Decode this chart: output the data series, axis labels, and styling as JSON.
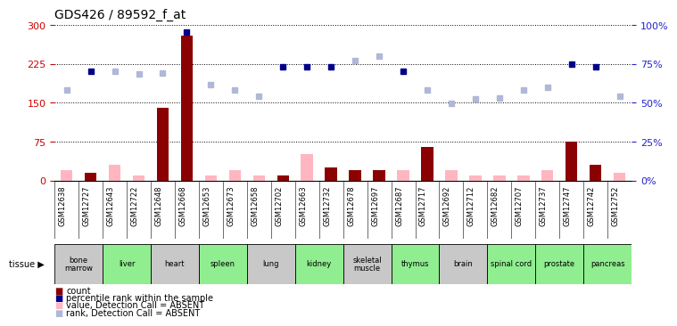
{
  "title": "GDS426 / 89592_f_at",
  "samples": [
    "GSM12638",
    "GSM12727",
    "GSM12643",
    "GSM12722",
    "GSM12648",
    "GSM12668",
    "GSM12653",
    "GSM12673",
    "GSM12658",
    "GSM12702",
    "GSM12663",
    "GSM12732",
    "GSM12678",
    "GSM12697",
    "GSM12687",
    "GSM12717",
    "GSM12692",
    "GSM12712",
    "GSM12682",
    "GSM12707",
    "GSM12737",
    "GSM12747",
    "GSM12742",
    "GSM12752"
  ],
  "tissues": [
    {
      "name": "bone\nmarrow",
      "start": 0,
      "end": 2,
      "color": "#c8c8c8"
    },
    {
      "name": "liver",
      "start": 2,
      "end": 4,
      "color": "#90ee90"
    },
    {
      "name": "heart",
      "start": 4,
      "end": 6,
      "color": "#c8c8c8"
    },
    {
      "name": "spleen",
      "start": 6,
      "end": 8,
      "color": "#90ee90"
    },
    {
      "name": "lung",
      "start": 8,
      "end": 10,
      "color": "#c8c8c8"
    },
    {
      "name": "kidney",
      "start": 10,
      "end": 12,
      "color": "#90ee90"
    },
    {
      "name": "skeletal\nmuscle",
      "start": 12,
      "end": 14,
      "color": "#c8c8c8"
    },
    {
      "name": "thymus",
      "start": 14,
      "end": 16,
      "color": "#90ee90"
    },
    {
      "name": "brain",
      "start": 16,
      "end": 18,
      "color": "#c8c8c8"
    },
    {
      "name": "spinal cord",
      "start": 18,
      "end": 20,
      "color": "#90ee90"
    },
    {
      "name": "prostate",
      "start": 20,
      "end": 22,
      "color": "#90ee90"
    },
    {
      "name": "pancreas",
      "start": 22,
      "end": 24,
      "color": "#90ee90"
    }
  ],
  "count_present": [
    0,
    15,
    0,
    0,
    140,
    280,
    0,
    0,
    0,
    10,
    0,
    25,
    20,
    20,
    0,
    65,
    0,
    0,
    0,
    0,
    0,
    75,
    30,
    0
  ],
  "count_absent": [
    20,
    0,
    30,
    10,
    0,
    0,
    10,
    20,
    10,
    0,
    50,
    0,
    0,
    0,
    20,
    0,
    20,
    10,
    10,
    10,
    20,
    0,
    0,
    15
  ],
  "rank_present": [
    null,
    210,
    null,
    null,
    null,
    287,
    null,
    null,
    null,
    220,
    220,
    220,
    null,
    null,
    210,
    null,
    null,
    null,
    null,
    null,
    null,
    225,
    220,
    null
  ],
  "rank_absent": [
    175,
    null,
    210,
    205,
    207,
    null,
    185,
    175,
    162,
    null,
    null,
    null,
    232,
    240,
    null,
    175,
    148,
    157,
    160,
    175,
    180,
    null,
    null,
    163
  ],
  "ylim_left": [
    0,
    300
  ],
  "ylim_right": [
    0,
    100
  ],
  "yticks_left": [
    0,
    75,
    150,
    225,
    300
  ],
  "yticks_right": [
    0,
    25,
    50,
    75,
    100
  ],
  "bar_color_present": "#8b0000",
  "bar_color_absent": "#ffb6c1",
  "dot_color_present": "#00008b",
  "dot_color_absent": "#b0b8d8",
  "axis_color_left": "#cc0000",
  "axis_color_right": "#2222cc",
  "bar_width": 0.5
}
